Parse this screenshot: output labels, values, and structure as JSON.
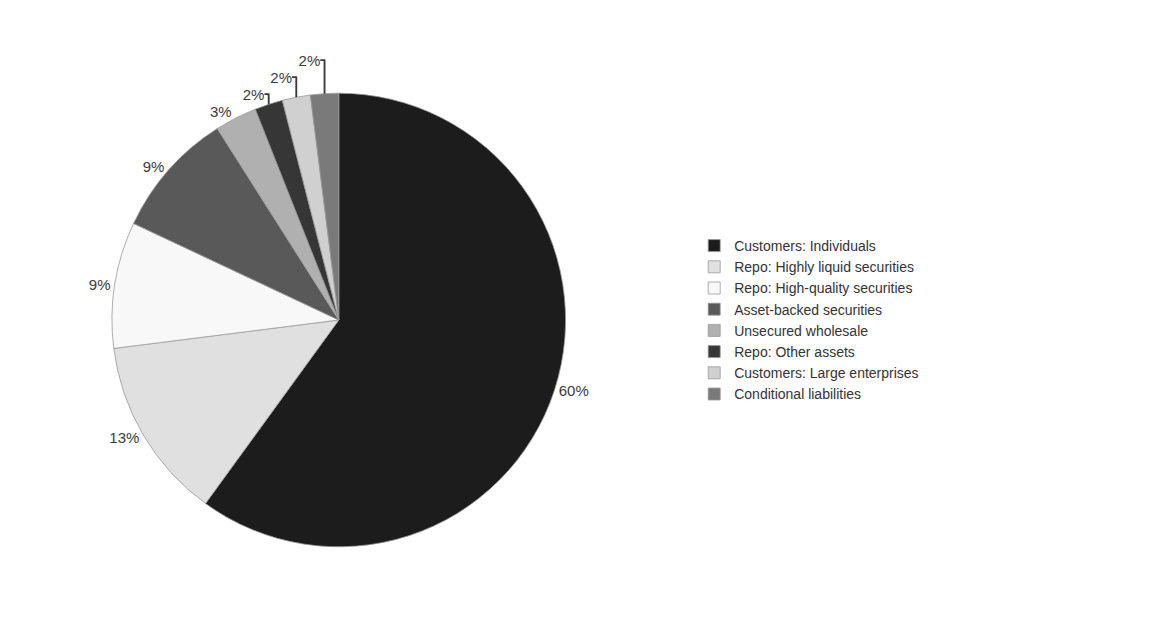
{
  "chart_data": {
    "type": "pie",
    "categories": [
      "Customers: Individuals",
      "Repo: Highly liquid securities",
      "Repo: High-quality securities",
      "Asset-backed securities",
      "Unsecured wholesale",
      "Repo: Other assets",
      "Customers: Large enterprises",
      "Conditional liabilities"
    ],
    "values": [
      60,
      13,
      9,
      9,
      3,
      2,
      2,
      2
    ],
    "value_labels": [
      "60%",
      "13%",
      "9%",
      "9%",
      "3%",
      "2%",
      "2%",
      "2%"
    ],
    "colors": [
      "#1c1c1c",
      "#e0e0e0",
      "#f8f8f8",
      "#595959",
      "#b0b0b0",
      "#363636",
      "#d0d0d0",
      "#7a7a7a"
    ],
    "data_labels": true,
    "legend": "right"
  }
}
